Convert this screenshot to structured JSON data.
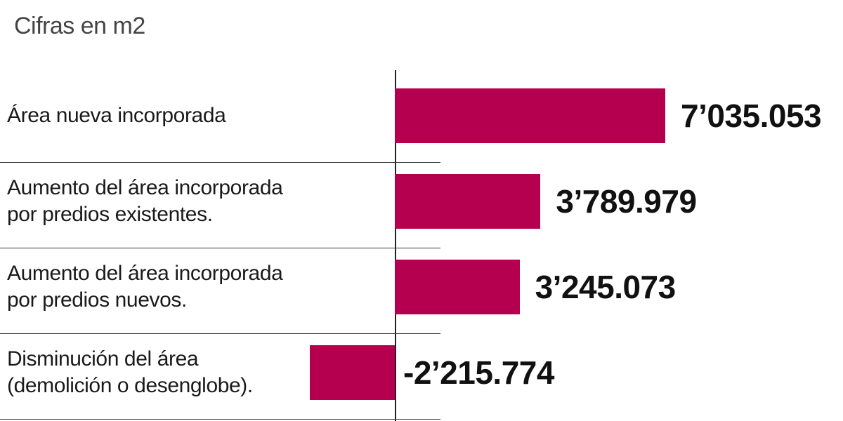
{
  "chart_data": {
    "type": "bar",
    "orientation": "horizontal",
    "subtitle": "Cifras en m2",
    "unit": "m2",
    "bar_color": "#b5004f",
    "categories": [
      [
        "Área nueva incorporada"
      ],
      [
        "Aumento del área incorporada",
        "por predios existentes."
      ],
      [
        "Aumento del área incorporada",
        "por predios nuevos."
      ],
      [
        "Disminución del área",
        "(demolición o desenglobe)."
      ]
    ],
    "values": [
      7035053,
      3789979,
      3245073,
      -2215774
    ],
    "value_labels": [
      "7’035.053",
      "3’789.979",
      "3’245.073",
      "-2’215.774"
    ],
    "xlim": [
      -2215774,
      7035053
    ]
  }
}
